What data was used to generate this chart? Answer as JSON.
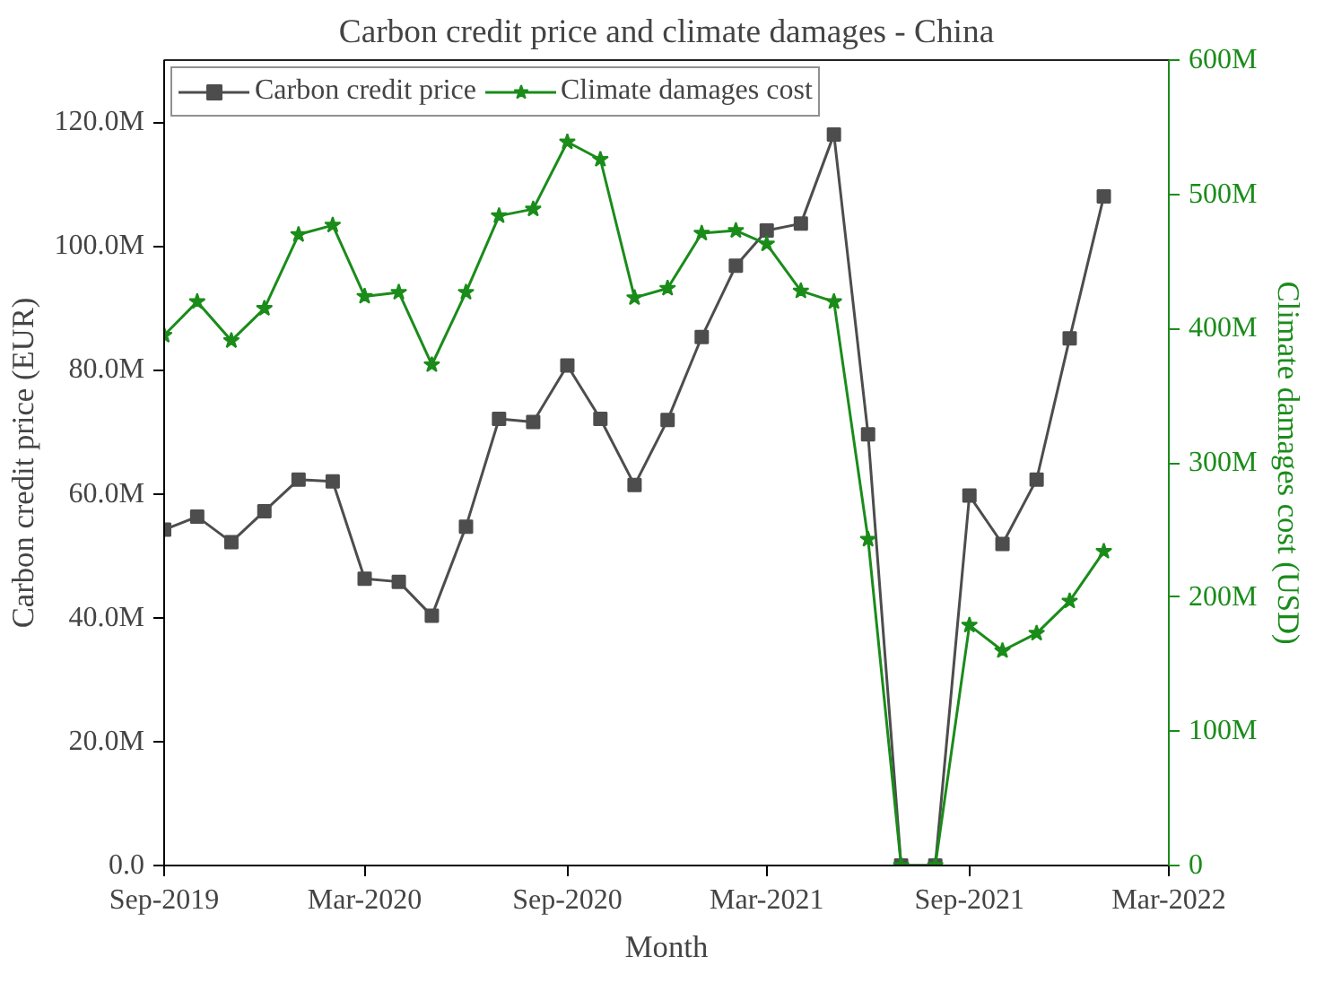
{
  "chart_data": {
    "type": "line",
    "title": "Carbon credit price and climate damages - China",
    "xlabel": "Month",
    "ylabel": "Carbon credit price (EUR)",
    "y2label": "Climate damages cost (USD)",
    "x": [
      "2019-09",
      "2019-10",
      "2019-11",
      "2019-12",
      "2020-01",
      "2020-02",
      "2020-03",
      "2020-04",
      "2020-05",
      "2020-06",
      "2020-07",
      "2020-08",
      "2020-09",
      "2020-10",
      "2020-11",
      "2020-12",
      "2021-01",
      "2021-02",
      "2021-03",
      "2021-04",
      "2021-05",
      "2021-06",
      "2021-07",
      "2021-08",
      "2021-09",
      "2021-10",
      "2021-11",
      "2021-12",
      "2022-01"
    ],
    "series": [
      {
        "name": "Carbon credit price",
        "color": "#4d4d4d",
        "marker": "square",
        "values": [
          54.2,
          56.3,
          52.2,
          57.2,
          62.3,
          62.0,
          46.3,
          45.8,
          40.3,
          54.7,
          72.1,
          71.6,
          80.7,
          72.1,
          61.4,
          71.9,
          85.3,
          96.8,
          102.5,
          103.6,
          118.0,
          69.6,
          0,
          0,
          59.7,
          51.9,
          62.3,
          85.1,
          108.0
        ]
      },
      {
        "name": "Climate damages cost",
        "color": "#1a8c1a",
        "marker": "star",
        "axis": "y2",
        "values": [
          395,
          420,
          391,
          415,
          470,
          477,
          424,
          427,
          373,
          427,
          484,
          489,
          539,
          526,
          423,
          430,
          471,
          473,
          463,
          428,
          420,
          243,
          0,
          0,
          179,
          160,
          173,
          197,
          234
        ]
      }
    ],
    "xlim": [
      "2019-09",
      "2022-03"
    ],
    "xticks": [
      {
        "value": "2019-09",
        "label": "Sep-2019"
      },
      {
        "value": "2020-03",
        "label": "Mar-2020"
      },
      {
        "value": "2020-09",
        "label": "Sep-2020"
      },
      {
        "value": "2021-03",
        "label": "Mar-2021"
      },
      {
        "value": "2021-09",
        "label": "Sep-2021"
      },
      {
        "value": "2022-03",
        "label": "Mar-2022"
      }
    ],
    "ylim": [
      0,
      130
    ],
    "yticks": [
      {
        "value": 0,
        "label": "0.0"
      },
      {
        "value": 20,
        "label": "20.0M"
      },
      {
        "value": 40,
        "label": "40.0M"
      },
      {
        "value": 60,
        "label": "60.0M"
      },
      {
        "value": 80,
        "label": "80.0M"
      },
      {
        "value": 100,
        "label": "100.0M"
      },
      {
        "value": 120,
        "label": "120.0M"
      }
    ],
    "y2lim": [
      0,
      600
    ],
    "y2ticks": [
      0,
      {
        "value": 100,
        "label": "100M"
      },
      {
        "value": 200,
        "label": "200M"
      },
      {
        "value": 300,
        "label": "300M"
      },
      {
        "value": 400,
        "label": "400M"
      },
      {
        "value": 500,
        "label": "500M"
      },
      {
        "value": 600,
        "label": "600M"
      }
    ],
    "legend": "top left",
    "grid": false
  }
}
